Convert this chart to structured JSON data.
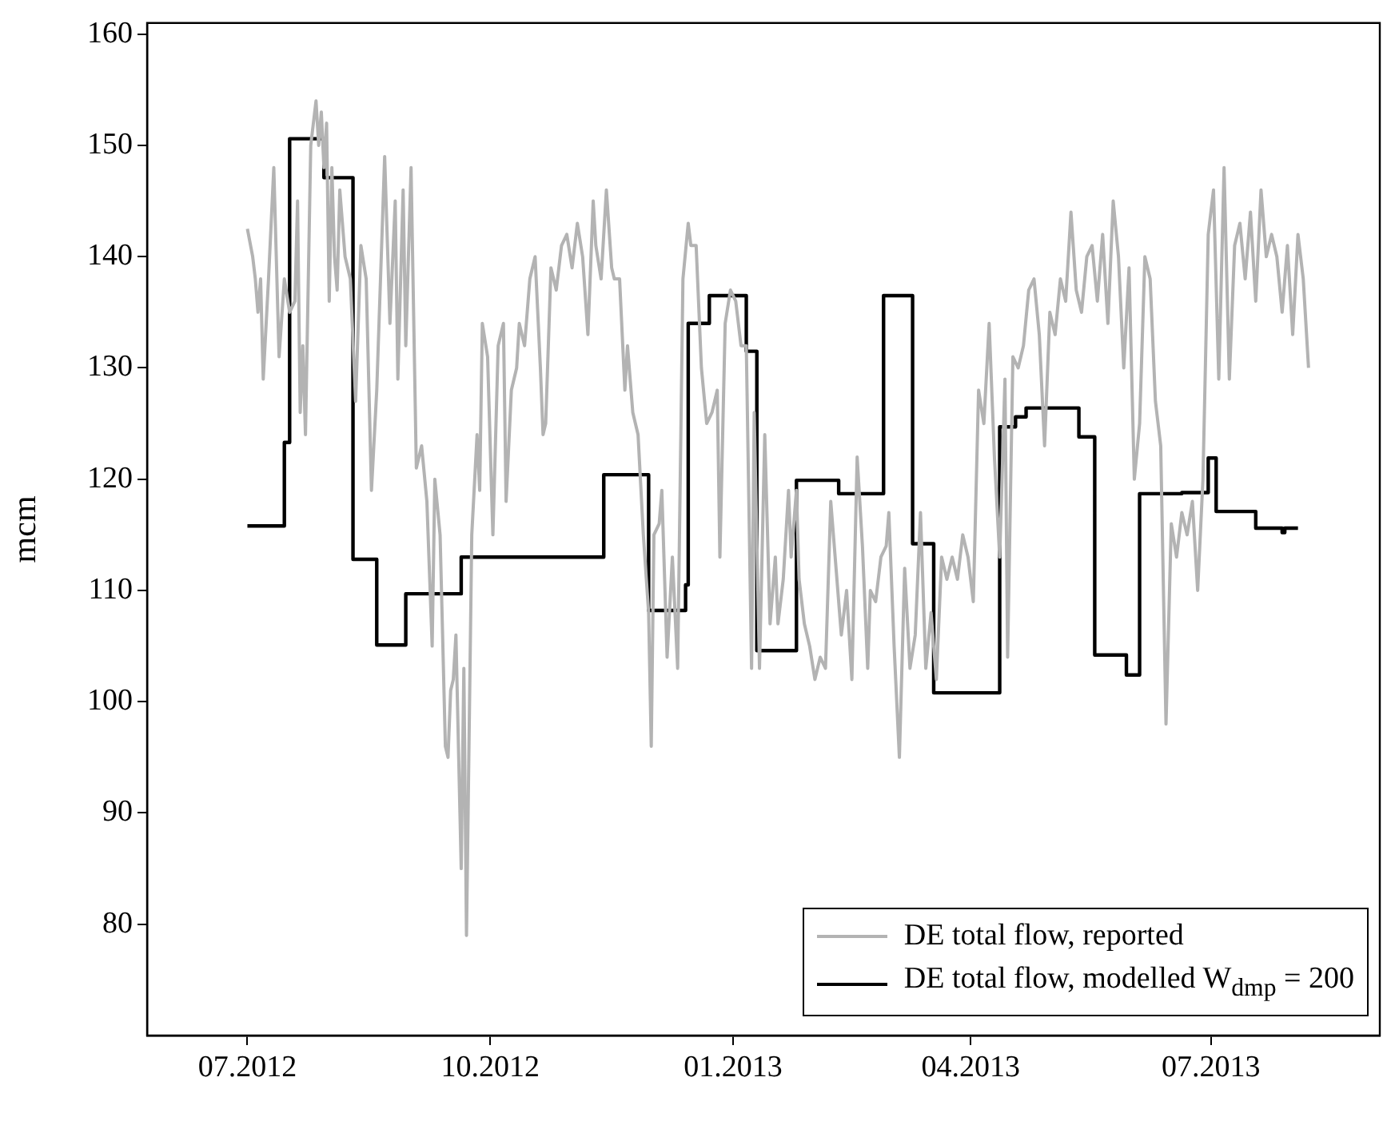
{
  "chart_data": {
    "type": "line",
    "ylabel": "mcm",
    "legend": "bottom right",
    "grid": false,
    "marker": "none",
    "line_style": "solid",
    "xlim": [
      "2012-05-24",
      "2013-09-03"
    ],
    "xticks": [
      {
        "value": "2012-07-01",
        "label": "07.2012"
      },
      {
        "value": "2012-10-01",
        "label": "10.2012"
      },
      {
        "value": "2013-01-01",
        "label": "01.2013"
      },
      {
        "value": "2013-04-01",
        "label": "04.2013"
      },
      {
        "value": "2013-07-01",
        "label": "07.2013"
      }
    ],
    "ylim": [
      70,
      161
    ],
    "yticks": [
      80,
      90,
      100,
      110,
      120,
      130,
      140,
      150,
      160
    ],
    "series": [
      {
        "name": "DE total flow, reported",
        "color": "#b3b3b3",
        "x": [
          "2012-07-01",
          "2012-07-03",
          "2012-07-04",
          "2012-07-05",
          "2012-07-06",
          "2012-07-07",
          "2012-07-09",
          "2012-07-11",
          "2012-07-13",
          "2012-07-15",
          "2012-07-17",
          "2012-07-19",
          "2012-07-20",
          "2012-07-21",
          "2012-07-22",
          "2012-07-23",
          "2012-07-25",
          "2012-07-27",
          "2012-07-28",
          "2012-07-29",
          "2012-07-30",
          "2012-07-31",
          "2012-08-01",
          "2012-08-02",
          "2012-08-03",
          "2012-08-04",
          "2012-08-05",
          "2012-08-07",
          "2012-08-09",
          "2012-08-11",
          "2012-08-13",
          "2012-08-15",
          "2012-08-17",
          "2012-08-19",
          "2012-08-22",
          "2012-08-24",
          "2012-08-26",
          "2012-08-27",
          "2012-08-29",
          "2012-08-30",
          "2012-09-01",
          "2012-09-03",
          "2012-09-05",
          "2012-09-07",
          "2012-09-09",
          "2012-09-10",
          "2012-09-12",
          "2012-09-14",
          "2012-09-15",
          "2012-09-16",
          "2012-09-17",
          "2012-09-18",
          "2012-09-20",
          "2012-09-21",
          "2012-09-22",
          "2012-09-24",
          "2012-09-26",
          "2012-09-27",
          "2012-09-28",
          "2012-09-30",
          "2012-10-02",
          "2012-10-04",
          "2012-10-06",
          "2012-10-07",
          "2012-10-09",
          "2012-10-11",
          "2012-10-12",
          "2012-10-14",
          "2012-10-16",
          "2012-10-18",
          "2012-10-20",
          "2012-10-21",
          "2012-10-22",
          "2012-10-24",
          "2012-10-26",
          "2012-10-28",
          "2012-10-30",
          "2012-11-01",
          "2012-11-03",
          "2012-11-05",
          "2012-11-07",
          "2012-11-09",
          "2012-11-10",
          "2012-11-12",
          "2012-11-14",
          "2012-11-16",
          "2012-11-17",
          "2012-11-19",
          "2012-11-21",
          "2012-11-22",
          "2012-11-24",
          "2012-11-26",
          "2012-11-28",
          "2012-11-30",
          "2012-12-01",
          "2012-12-02",
          "2012-12-04",
          "2012-12-05",
          "2012-12-07",
          "2012-12-09",
          "2012-12-11",
          "2012-12-13",
          "2012-12-15",
          "2012-12-16",
          "2012-12-18",
          "2012-12-20",
          "2012-12-22",
          "2012-12-24",
          "2012-12-26",
          "2012-12-27",
          "2012-12-29",
          "2012-12-31",
          "2013-01-02",
          "2013-01-04",
          "2013-01-06",
          "2013-01-08",
          "2013-01-09",
          "2013-01-11",
          "2013-01-13",
          "2013-01-15",
          "2013-01-17",
          "2013-01-18",
          "2013-01-20",
          "2013-01-22",
          "2013-01-23",
          "2013-01-25",
          "2013-01-26",
          "2013-01-28",
          "2013-01-30",
          "2013-02-01",
          "2013-02-03",
          "2013-02-05",
          "2013-02-07",
          "2013-02-09",
          "2013-02-11",
          "2013-02-13",
          "2013-02-15",
          "2013-02-17",
          "2013-02-19",
          "2013-02-21",
          "2013-02-22",
          "2013-02-24",
          "2013-02-26",
          "2013-02-28",
          "2013-03-01",
          "2013-03-03",
          "2013-03-05",
          "2013-03-07",
          "2013-03-09",
          "2013-03-11",
          "2013-03-13",
          "2013-03-15",
          "2013-03-17",
          "2013-03-19",
          "2013-03-21",
          "2013-03-23",
          "2013-03-25",
          "2013-03-27",
          "2013-03-29",
          "2013-03-31",
          "2013-04-02",
          "2013-04-04",
          "2013-04-06",
          "2013-04-08",
          "2013-04-10",
          "2013-04-12",
          "2013-04-14",
          "2013-04-15",
          "2013-04-17",
          "2013-04-19",
          "2013-04-21",
          "2013-04-23",
          "2013-04-25",
          "2013-04-27",
          "2013-04-29",
          "2013-05-01",
          "2013-05-03",
          "2013-05-05",
          "2013-05-07",
          "2013-05-09",
          "2013-05-11",
          "2013-05-13",
          "2013-05-15",
          "2013-05-17",
          "2013-05-19",
          "2013-05-21",
          "2013-05-23",
          "2013-05-25",
          "2013-05-27",
          "2013-05-29",
          "2013-05-31",
          "2013-06-02",
          "2013-06-04",
          "2013-06-06",
          "2013-06-08",
          "2013-06-10",
          "2013-06-12",
          "2013-06-14",
          "2013-06-16",
          "2013-06-18",
          "2013-06-20",
          "2013-06-22",
          "2013-06-24",
          "2013-06-26",
          "2013-06-28",
          "2013-06-30",
          "2013-07-02",
          "2013-07-04",
          "2013-07-06",
          "2013-07-08",
          "2013-07-10",
          "2013-07-12",
          "2013-07-14",
          "2013-07-16",
          "2013-07-18",
          "2013-07-20",
          "2013-07-22",
          "2013-07-24",
          "2013-07-26",
          "2013-07-28",
          "2013-07-30",
          "2013-08-01",
          "2013-08-03",
          "2013-08-05",
          "2013-08-07"
        ],
        "values": [
          142.5,
          140,
          138,
          135,
          138,
          129,
          138,
          148,
          131,
          138,
          135,
          136,
          145,
          126,
          132,
          124,
          150,
          154,
          150,
          153,
          148,
          152,
          136,
          148,
          140,
          137,
          146,
          140,
          138,
          127,
          141,
          138,
          119,
          128,
          149,
          134,
          145,
          129,
          146,
          132,
          148,
          121,
          123,
          118,
          105,
          120,
          115,
          96,
          95,
          101,
          102,
          106,
          85,
          103,
          79,
          115,
          124,
          119,
          134,
          131,
          115,
          132,
          134,
          118,
          128,
          130,
          134,
          132,
          138,
          140,
          130,
          124,
          125,
          139,
          137,
          141,
          142,
          139,
          143,
          140,
          133,
          145,
          141,
          138,
          146,
          139,
          138,
          138,
          128,
          132,
          126,
          124,
          115,
          108,
          96,
          115,
          116,
          119,
          104,
          113,
          103,
          138,
          143,
          141,
          141,
          130,
          125,
          126,
          128,
          113,
          134,
          137,
          136,
          132,
          132,
          103,
          126,
          103,
          124,
          107,
          113,
          107,
          111,
          119,
          113,
          119,
          111,
          107,
          105,
          102,
          104,
          103,
          118,
          112,
          106,
          110,
          102,
          122,
          114,
          103,
          110,
          109,
          113,
          114,
          117,
          105,
          95,
          112,
          103,
          106,
          117,
          103,
          108,
          102,
          113,
          111,
          113,
          111,
          115,
          113,
          109,
          128,
          125,
          134,
          122,
          113,
          129,
          104,
          131,
          130,
          132,
          137,
          138,
          133,
          123,
          135,
          133,
          138,
          136,
          144,
          137,
          135,
          140,
          141,
          136,
          142,
          134,
          145,
          140,
          130,
          139,
          120,
          125,
          140,
          138,
          127,
          123,
          98,
          116,
          113,
          117,
          115,
          118,
          110,
          120,
          142,
          146,
          129,
          148,
          129,
          141,
          143,
          138,
          144,
          136,
          146,
          140,
          142,
          140,
          135,
          141,
          133,
          142,
          138,
          130
        ]
      },
      {
        "name": "DE total flow, modelled W$_{dmp}$ = 200",
        "color": "#000000",
        "type": "step",
        "x": [
          "2012-07-01",
          "2012-07-15",
          "2012-07-17",
          "2012-07-30",
          "2012-08-10",
          "2012-08-19",
          "2012-08-30",
          "2012-09-20",
          "2012-11-13",
          "2012-11-30",
          "2012-12-14",
          "2012-12-15",
          "2012-12-23",
          "2013-01-06",
          "2013-01-10",
          "2013-01-25",
          "2013-02-10",
          "2013-02-27",
          "2013-03-10",
          "2013-03-18",
          "2013-04-12",
          "2013-04-18",
          "2013-04-22",
          "2013-05-12",
          "2013-05-18",
          "2013-05-30",
          "2013-06-04",
          "2013-06-20",
          "2013-06-30",
          "2013-07-03",
          "2013-07-18",
          "2013-07-28",
          "2013-07-29",
          "2013-08-03"
        ],
        "values": [
          115.8,
          123.3,
          150.6,
          147.1,
          112.8,
          105.1,
          109.7,
          113,
          120.4,
          108.2,
          110.5,
          134,
          136.5,
          131.5,
          104.6,
          119.9,
          118.7,
          136.5,
          114.2,
          100.8,
          124.7,
          125.6,
          126.4,
          123.8,
          104.2,
          102.4,
          118.7,
          118.8,
          121.9,
          117.1,
          115.6,
          115.2,
          115.6,
          115.6
        ]
      }
    ]
  }
}
